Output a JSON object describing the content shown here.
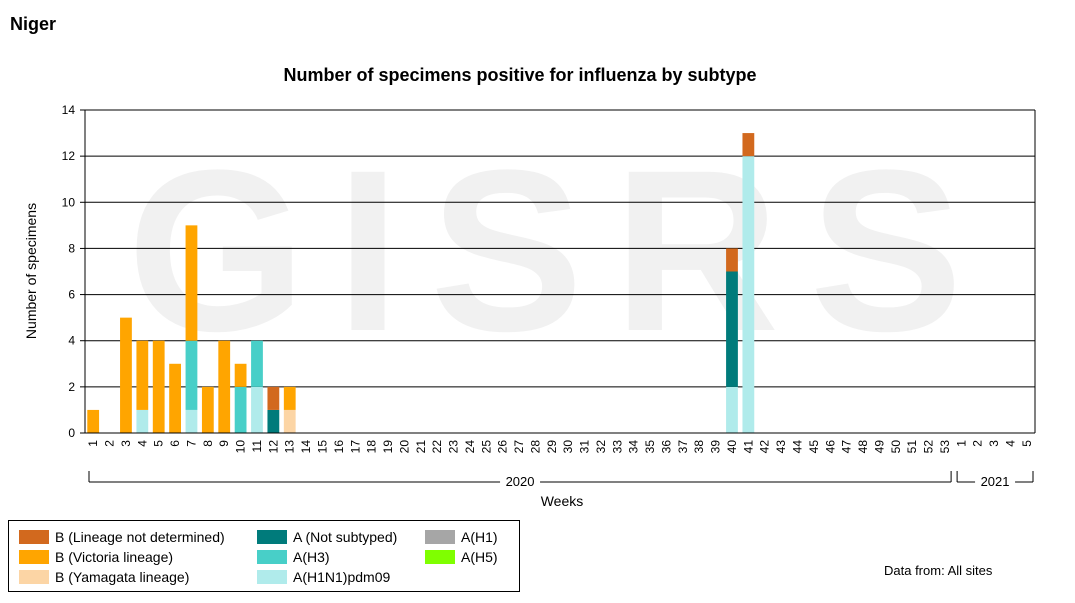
{
  "page": {
    "title": "Niger",
    "data_source": "Data from: All sites"
  },
  "chart_data": {
    "type": "bar",
    "stacked": true,
    "title": "Number of specimens positive for influenza by subtype",
    "xlabel": "Weeks",
    "ylabel": "Number of specimens",
    "ylim": [
      0,
      14
    ],
    "yticks": [
      "0",
      "2",
      "4",
      "6",
      "8",
      "10",
      "12",
      "14"
    ],
    "grid": true,
    "watermark": "GISRS",
    "year_groups": [
      {
        "label": "2020",
        "start_index": 0,
        "end_index": 52
      },
      {
        "label": "2021",
        "start_index": 53,
        "end_index": 57
      }
    ],
    "categories": [
      "1",
      "2",
      "3",
      "4",
      "5",
      "6",
      "7",
      "8",
      "9",
      "10",
      "11",
      "12",
      "13",
      "14",
      "15",
      "16",
      "17",
      "18",
      "19",
      "20",
      "21",
      "22",
      "23",
      "24",
      "25",
      "26",
      "27",
      "28",
      "29",
      "30",
      "31",
      "32",
      "33",
      "34",
      "35",
      "36",
      "37",
      "38",
      "39",
      "40",
      "41",
      "42",
      "43",
      "44",
      "45",
      "46",
      "47",
      "48",
      "49",
      "50",
      "51",
      "52",
      "53",
      "1",
      "2",
      "3",
      "4",
      "5"
    ],
    "series": [
      {
        "name": "A(H1N1)pdm09",
        "color": "#b0ebeb",
        "values": {
          "3": 1,
          "6": 1,
          "10": 2,
          "39": 2,
          "40": 12
        }
      },
      {
        "name": "A(H1)",
        "color": "#a6a6a6",
        "values": {}
      },
      {
        "name": "A(H3)",
        "color": "#48cfc8",
        "values": {
          "6": 3,
          "9": 2,
          "10": 2
        }
      },
      {
        "name": "A(H5)",
        "color": "#7fff00",
        "values": {}
      },
      {
        "name": "A (Not subtyped)",
        "color": "#007b7b",
        "values": {
          "11": 1,
          "39": 5
        }
      },
      {
        "name": "B (Yamagata lineage)",
        "color": "#fcd5a5",
        "values": {
          "12": 1
        }
      },
      {
        "name": "B (Victoria lineage)",
        "color": "#ffa500",
        "values": {
          "0": 1,
          "2": 5,
          "3": 3,
          "4": 4,
          "5": 3,
          "6": 5,
          "7": 2,
          "8": 4,
          "9": 1,
          "12": 1
        }
      },
      {
        "name": "B (Lineage not determined)",
        "color": "#d2691e",
        "values": {
          "11": 1,
          "39": 1,
          "40": 1
        }
      }
    ],
    "legend_order": [
      [
        "B (Lineage not determined)",
        "B (Victoria lineage)",
        "B (Yamagata lineage)"
      ],
      [
        "A (Not subtyped)",
        "A(H3)",
        "A(H1N1)pdm09"
      ],
      [
        "A(H1)",
        "A(H5)"
      ]
    ]
  }
}
